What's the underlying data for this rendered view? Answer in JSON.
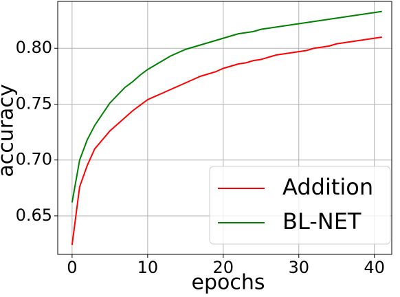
{
  "chart_data": {
    "type": "line",
    "xlabel": "epochs",
    "ylabel": "accuracy",
    "x": [
      0,
      1,
      2,
      3,
      4,
      5,
      6,
      7,
      8,
      9,
      10,
      11,
      12,
      13,
      14,
      15,
      16,
      17,
      18,
      19,
      20,
      21,
      22,
      23,
      24,
      25,
      26,
      27,
      28,
      29,
      30,
      31,
      32,
      33,
      34,
      35,
      36,
      37,
      38,
      39,
      40,
      41
    ],
    "series": [
      {
        "name": "Addition",
        "color": "#ff0000",
        "values": [
          0.624,
          0.676,
          0.695,
          0.71,
          0.718,
          0.726,
          0.732,
          0.738,
          0.744,
          0.749,
          0.754,
          0.757,
          0.76,
          0.763,
          0.766,
          0.769,
          0.772,
          0.775,
          0.777,
          0.779,
          0.782,
          0.784,
          0.786,
          0.787,
          0.789,
          0.79,
          0.792,
          0.794,
          0.795,
          0.796,
          0.797,
          0.798,
          0.8,
          0.801,
          0.802,
          0.804,
          0.805,
          0.806,
          0.807,
          0.808,
          0.809,
          0.81
        ]
      },
      {
        "name": "BL-NET",
        "color": "#008000",
        "values": [
          0.662,
          0.7,
          0.718,
          0.731,
          0.741,
          0.751,
          0.758,
          0.765,
          0.77,
          0.776,
          0.781,
          0.785,
          0.789,
          0.793,
          0.796,
          0.799,
          0.801,
          0.803,
          0.805,
          0.807,
          0.809,
          0.811,
          0.813,
          0.814,
          0.815,
          0.817,
          0.818,
          0.819,
          0.82,
          0.821,
          0.822,
          0.823,
          0.824,
          0.825,
          0.826,
          0.827,
          0.828,
          0.829,
          0.83,
          0.831,
          0.832,
          0.833
        ]
      }
    ],
    "xlim": [
      -1.9,
      42.3
    ],
    "xticks": [
      0,
      10,
      20,
      30,
      40
    ],
    "ylim": [
      0.6155,
      0.842
    ],
    "yticks": [
      0.65,
      {
        "value": 0.7,
        "label": "0.70"
      },
      0.75,
      {
        "value": 0.8,
        "label": "0.80"
      }
    ],
    "grid": true,
    "legend": "lower right"
  }
}
